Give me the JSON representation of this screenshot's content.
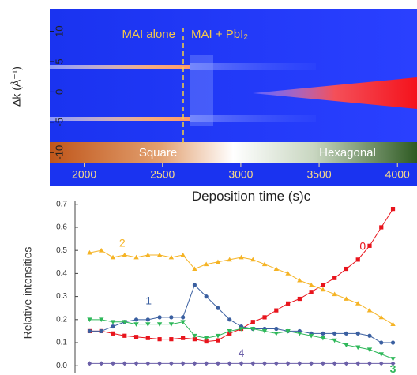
{
  "chart_data": [
    {
      "type": "heatmap",
      "xlabel": "Deposition time (s)",
      "panel_label": "c",
      "ylabel": "Δk (Å⁻¹)",
      "xlim": [
        1780,
        4125
      ],
      "xticks": [
        2000,
        2500,
        3000,
        3500,
        4000
      ],
      "ylim": [
        -11.8,
        13.6
      ],
      "yticks": [
        10,
        5,
        0,
        -5,
        -10
      ],
      "annotations": [
        "MAI alone",
        "MAI + PbI₂"
      ],
      "colorbar_labels": [
        "Square",
        "Hexagonal"
      ]
    },
    {
      "type": "line",
      "ylabel": "Relative intensities",
      "xlim": [
        1780,
        4125
      ],
      "ylim": [
        -0.03,
        0.73
      ],
      "yticks": [
        {
          "value": 0,
          "label": "0.0"
        },
        0.1,
        0.2,
        0.3,
        0.4,
        0.5,
        0.6,
        0.7
      ],
      "x": [
        1880,
        1960,
        2040,
        2120,
        2200,
        2280,
        2360,
        2440,
        2520,
        2600,
        2680,
        2760,
        2840,
        2920,
        3000,
        3080,
        3160,
        3240,
        3320,
        3400,
        3480,
        3560,
        3640,
        3720,
        3800,
        3880,
        3960
      ],
      "series": [
        {
          "name": "0",
          "color": "#e8141c",
          "marker": "square",
          "values": [
            0.15,
            0.15,
            0.14,
            0.13,
            0.125,
            0.12,
            0.115,
            0.115,
            0.12,
            0.115,
            0.105,
            0.11,
            0.14,
            0.16,
            0.19,
            0.21,
            0.24,
            0.27,
            0.29,
            0.32,
            0.35,
            0.38,
            0.42,
            0.46,
            0.52,
            0.6,
            0.68
          ]
        },
        {
          "name": "1",
          "color": "#3a5fa0",
          "marker": "circle",
          "values": [
            0.15,
            0.15,
            0.17,
            0.19,
            0.2,
            0.2,
            0.21,
            0.21,
            0.21,
            0.35,
            0.3,
            0.25,
            0.2,
            0.17,
            0.16,
            0.16,
            0.16,
            0.15,
            0.15,
            0.14,
            0.14,
            0.14,
            0.14,
            0.14,
            0.13,
            0.1,
            0.1
          ]
        },
        {
          "name": "2",
          "color": "#f5b324",
          "marker": "triangle-up",
          "values": [
            0.49,
            0.5,
            0.47,
            0.48,
            0.47,
            0.48,
            0.48,
            0.47,
            0.48,
            0.42,
            0.44,
            0.45,
            0.46,
            0.47,
            0.46,
            0.44,
            0.42,
            0.4,
            0.37,
            0.35,
            0.33,
            0.31,
            0.29,
            0.27,
            0.24,
            0.21,
            0.18
          ]
        },
        {
          "name": "3",
          "color": "#2fb85a",
          "marker": "triangle-down",
          "values": [
            0.2,
            0.2,
            0.19,
            0.19,
            0.18,
            0.18,
            0.18,
            0.18,
            0.19,
            0.13,
            0.12,
            0.13,
            0.15,
            0.16,
            0.16,
            0.15,
            0.14,
            0.15,
            0.14,
            0.13,
            0.12,
            0.11,
            0.09,
            0.08,
            0.07,
            0.05,
            0.03
          ]
        },
        {
          "name": "4",
          "color": "#6b5fa8",
          "marker": "diamond",
          "values": [
            0.01,
            0.01,
            0.01,
            0.01,
            0.01,
            0.01,
            0.01,
            0.01,
            0.01,
            0.01,
            0.01,
            0.01,
            0.01,
            0.01,
            0.01,
            0.01,
            0.01,
            0.01,
            0.01,
            0.01,
            0.01,
            0.01,
            0.01,
            0.01,
            0.01,
            0.01,
            0.01
          ]
        }
      ]
    }
  ]
}
